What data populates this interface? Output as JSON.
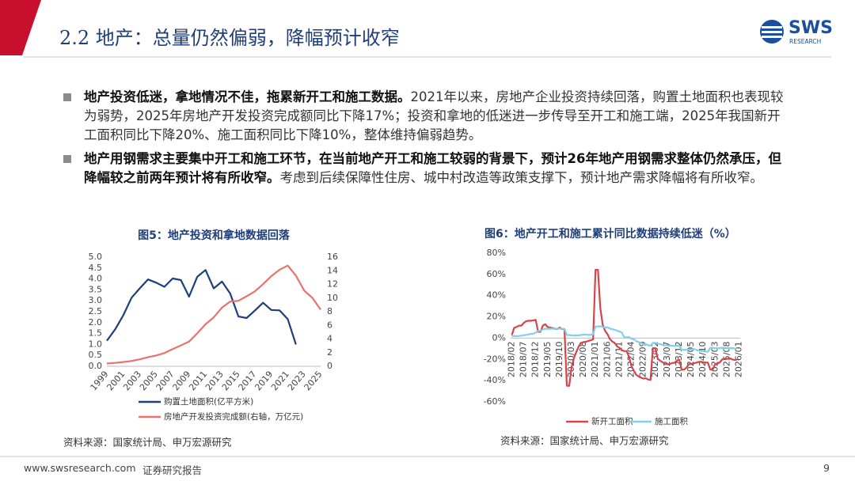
{
  "header": {
    "title": "2.2 地产：总量仍然偏弱，降幅预计收窄",
    "logo": "SWS",
    "logo_sub": "RESEARCH"
  },
  "bullets": [
    {
      "bold": "地产投资低迷，拿地情况不佳，拖累新开工和施工数据。",
      "text": "2021年以来，房地产企业投资持续回落，购置土地面积也表现较为弱势，2025年房地产开发投资完成额同比下降17%；投资和拿地的低迷进一步传导至开工和施工端，2025年我国新开工面积同比下降20%、施工面积同比下降10%，整体维持偏弱趋势。"
    },
    {
      "bold": "地产用钢需求主要集中开工和施工环节，在当前地产开工和施工较弱的背景下，预计26年地产用钢需求整体仍然承压，但降幅较之前两年预计将有所收窄。",
      "text": "考虑到后续保障性住房、城中村改造等政策支撑下，预计地产需求降幅将有所收窄。"
    }
  ],
  "chart_data": [
    {
      "type": "line",
      "title": "图5：地产投资和拿地数据回落",
      "source": "资料来源：国家统计局、申万宏源研究",
      "x": [
        1999,
        2000,
        2001,
        2002,
        2003,
        2004,
        2005,
        2006,
        2007,
        2008,
        2009,
        2010,
        2011,
        2012,
        2013,
        2014,
        2015,
        2016,
        2017,
        2018,
        2019,
        2020,
        2021,
        2022,
        2023,
        2024,
        2025
      ],
      "series": [
        {
          "name": "购置土地面积(亿平方米)",
          "color": "#1f3e7a",
          "values": [
            1.17,
            1.69,
            2.34,
            3.14,
            3.57,
            3.98,
            3.83,
            3.64,
            4.02,
            3.95,
            3.19,
            4.1,
            4.41,
            3.57,
            3.88,
            3.33,
            2.28,
            2.21,
            2.55,
            2.91,
            2.58,
            2.56,
            2.16,
            1.0,
            null,
            null,
            null
          ]
        },
        {
          "name": "房地产开发投资完成额(右轴，万亿元)",
          "color": "#e8736c",
          "axis": "y2",
          "values": [
            0.41,
            0.5,
            0.63,
            0.78,
            1.02,
            1.32,
            1.59,
            1.94,
            2.53,
            3.06,
            3.62,
            4.83,
            6.17,
            7.18,
            8.6,
            9.5,
            9.6,
            10.26,
            10.98,
            12.03,
            13.22,
            14.14,
            14.76,
            13.29,
            11.09,
            10.03,
            8.3
          ]
        }
      ],
      "xlim": [
        1999,
        2025
      ],
      "xticks": [
        1999,
        2001,
        2003,
        2005,
        2007,
        2009,
        2011,
        2013,
        2015,
        2017,
        2019,
        2021,
        2023,
        2025
      ],
      "ylim": [
        0,
        5
      ],
      "yticks": [
        {
          "value": 0,
          "label": "0.0"
        },
        {
          "value": 0.5,
          "label": "0.5"
        },
        {
          "value": 1,
          "label": "1.0"
        },
        {
          "value": 1.5,
          "label": "1.5"
        },
        {
          "value": 2,
          "label": "2.0"
        },
        {
          "value": 2.5,
          "label": "2.5"
        },
        {
          "value": 3,
          "label": "3.0"
        },
        {
          "value": 3.5,
          "label": "3.5"
        },
        {
          "value": 4,
          "label": "4.0"
        },
        {
          "value": 4.5,
          "label": "4.5"
        },
        {
          "value": 5,
          "label": "5.0"
        }
      ],
      "y2lim": [
        0,
        16
      ],
      "y2ticks": [
        0,
        2,
        4,
        6,
        8,
        10,
        12,
        14,
        16
      ],
      "grid": false,
      "legend": "bottom"
    },
    {
      "type": "line",
      "title": "图6：地产开工和施工累计同比数据持续低迷（%）",
      "source": "资料来源：国家统计局、申万宏源研究",
      "categories": [
        "2018/02",
        null,
        null,
        null,
        null,
        "2018/07",
        null,
        null,
        null,
        null,
        "2018/12",
        null,
        null,
        null,
        null,
        "2019/05",
        null,
        null,
        null,
        null,
        "2019/10",
        null,
        null,
        null,
        null,
        "2020/03",
        null,
        null,
        null,
        null,
        "2020/08",
        null,
        null,
        null,
        null,
        "2021/01",
        null,
        null,
        null,
        null,
        "2021/06",
        null,
        null,
        null,
        null,
        "2021/11",
        null,
        null,
        null,
        null,
        "2022/04",
        null,
        null,
        null,
        null,
        "2022/09",
        null,
        null,
        null,
        null,
        "2023/02",
        null,
        null,
        null,
        null,
        "2023/07",
        null,
        null,
        null,
        null,
        "2023/12",
        null,
        null,
        null,
        null,
        "2024/05",
        null,
        null,
        null,
        null,
        "2024/10",
        null,
        null,
        null,
        null,
        "2025/03",
        null,
        null,
        null,
        null,
        "2025/08",
        null,
        null,
        null,
        null,
        "2026/01"
      ],
      "series": [
        {
          "name": "新开工面积",
          "color": "#d9434b",
          "values": [
            2.9,
            9.7,
            10.5,
            11.8,
            11.8,
            14.4,
            15.9,
            16.4,
            16.3,
            16.8,
            17.2,
            6.0,
            6.0,
            11.9,
            13.1,
            10.5,
            10.1,
            9.5,
            8.9,
            8.6,
            10.0,
            8.6,
            8.5,
            -44.9,
            -44.9,
            -27.2,
            -18.4,
            -12.8,
            -7.6,
            -4.5,
            -3.6,
            -3.4,
            -2.6,
            -2.0,
            -1.2,
            64.3,
            64.3,
            28.2,
            12.8,
            6.9,
            3.8,
            -0.9,
            -3.2,
            -4.5,
            -7.7,
            -9.1,
            -11.4,
            -12.2,
            -12.2,
            -17.5,
            -26.3,
            -30.6,
            -34.4,
            -36.1,
            -37.2,
            -38.0,
            -37.8,
            -38.9,
            -39.4,
            -9.4,
            -9.4,
            -19.2,
            -21.2,
            -22.6,
            -24.3,
            -24.5,
            -24.4,
            -23.4,
            -23.2,
            -21.2,
            -20.4,
            -29.7,
            -29.7,
            -27.8,
            -24.6,
            -24.2,
            -23.7,
            -23.2,
            -22.5,
            -22.2,
            -22.6,
            -23.0,
            -23.0,
            -29.6,
            -29.6,
            -24.4,
            -23.8,
            -22.8,
            -20.0,
            -19.4,
            -19.5,
            -18.9,
            -19.8,
            -20.5,
            -20.4,
            null
          ]
        },
        {
          "name": "施工面积",
          "color": "#7fd0ea",
          "values": [
            1.8,
            2.1,
            1.8,
            2.0,
            2.3,
            2.8,
            3.1,
            3.5,
            4.0,
            4.3,
            5.2,
            6.8,
            6.8,
            8.2,
            8.8,
            8.8,
            8.8,
            9.0,
            8.8,
            8.7,
            9.0,
            8.7,
            8.7,
            2.9,
            2.9,
            2.6,
            2.5,
            2.6,
            2.6,
            3.1,
            3.3,
            3.5,
            3.0,
            3.2,
            3.7,
            11.0,
            11.0,
            11.2,
            10.5,
            10.1,
            10.2,
            9.0,
            8.4,
            7.9,
            7.1,
            6.3,
            5.2,
            0.7,
            0.7,
            1.0,
            -0.6,
            -1.0,
            -2.8,
            -3.7,
            -4.5,
            -5.3,
            -5.7,
            -6.5,
            -7.2,
            -4.4,
            -4.4,
            -5.2,
            -5.6,
            -6.2,
            -6.6,
            -6.8,
            -7.1,
            -7.1,
            -7.3,
            -7.2,
            -7.2,
            -11.0,
            -11.0,
            -11.1,
            -10.8,
            -10.6,
            -10.1,
            -10.8,
            -11.8,
            -12.0,
            -12.2,
            -12.7,
            -12.7,
            -9.1,
            -9.1,
            -9.5,
            -9.6,
            -9.2,
            -9.1,
            -9.3,
            -9.3,
            -9.4,
            -9.4,
            -9.6,
            -10.0,
            null
          ]
        }
      ],
      "ylim": [
        -60,
        80
      ],
      "yticks": [
        {
          "value": -60,
          "label": "-60%"
        },
        {
          "value": -40,
          "label": "-40%"
        },
        {
          "value": -20,
          "label": "-20%"
        },
        {
          "value": 0,
          "label": "0%"
        },
        {
          "value": 20,
          "label": "20%"
        },
        {
          "value": 40,
          "label": "40%"
        },
        {
          "value": 60,
          "label": "60%"
        },
        {
          "value": 80,
          "label": "80%"
        }
      ],
      "grid": false,
      "legend": "bottom"
    }
  ],
  "footer": {
    "url": "www.swsresearch.com",
    "label": "证券研究报告",
    "page": 9
  }
}
